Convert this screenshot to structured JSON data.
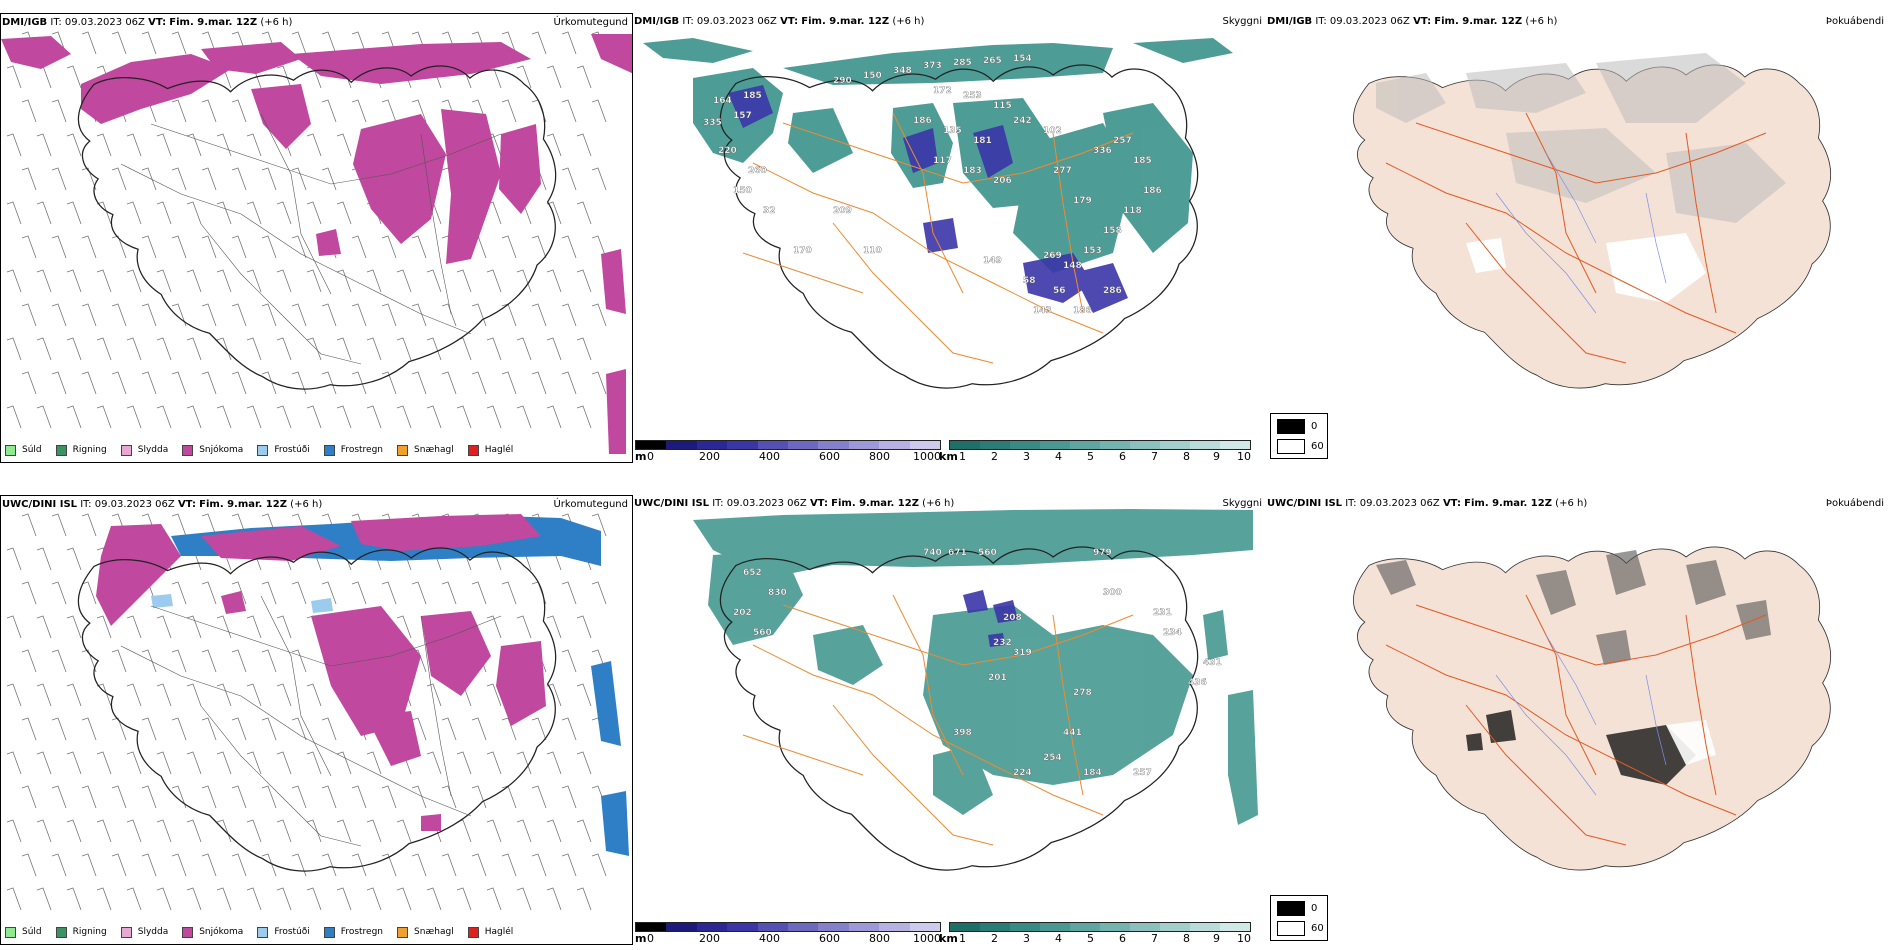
{
  "colors": {
    "snow": "#c0489e",
    "freezing": "#2f7fc6",
    "sleet": "#e9a8d4",
    "drizzle": "#8fea8f",
    "rain": "#3b9364",
    "frostudi": "#9ccbee",
    "snaehagl": "#f0a030",
    "hagl": "#e02020",
    "cloud": "#2f8c84",
    "lowcloud": "#3b36a8",
    "land": "#f5e2d6",
    "roads": "#e25a22",
    "roads_orange": "#ee8a30",
    "rivers": "#7a8fe8"
  },
  "header_common": {
    "it": "IT: 09.03.2023 06Z",
    "vt_label": "VT:",
    "vt_value": "Fim. 9.mar. 12Z",
    "lead": "(+6 h)"
  },
  "rows": [
    {
      "model": "DMI/IGB",
      "precip_title": "Úrkomutegund",
      "cloud_title": "Skyggni",
      "fog_title": "Þokuábendi",
      "cloud_labels": [
        "164",
        "185",
        "335",
        "157",
        "220",
        "260",
        "150",
        "32",
        "290",
        "150",
        "348",
        "373",
        "285",
        "265",
        "154",
        "172",
        "253",
        "115",
        "186",
        "135",
        "181",
        "117",
        "183",
        "206",
        "242",
        "102",
        "277",
        "179",
        "336",
        "257",
        "185",
        "186",
        "118",
        "158",
        "153",
        "148",
        "269",
        "149",
        "58",
        "56",
        "286",
        "186",
        "143",
        "110",
        "170",
        "209"
      ]
    },
    {
      "model": "UWC/DINI ISL",
      "precip_title": "Úrkomutegund",
      "cloud_title": "Skyggni",
      "fog_title": "Þokuábendi",
      "cloud_labels": [
        "652",
        "830",
        "202",
        "560",
        "740",
        "671",
        "560",
        "979",
        "300",
        "231",
        "234",
        "208",
        "232",
        "319",
        "201",
        "278",
        "431",
        "436",
        "398",
        "441",
        "254",
        "224",
        "184",
        "257"
      ]
    }
  ],
  "precip_legend": [
    {
      "label": "Súld",
      "color": "#8fea8f"
    },
    {
      "label": "Rigning",
      "color": "#3b9364"
    },
    {
      "label": "Slydda",
      "color": "#e9a8d4"
    },
    {
      "label": "Snjókoma",
      "color": "#c0489e"
    },
    {
      "label": "Frostúði",
      "color": "#9ccbee"
    },
    {
      "label": "Frostregn",
      "color": "#2f7fc6"
    },
    {
      "label": "Snæhagl",
      "color": "#f0a030"
    },
    {
      "label": "Haglél",
      "color": "#e02020"
    }
  ],
  "cloudbase_scale": {
    "unit": "m",
    "ticks": [
      "0",
      "200",
      "400",
      "600",
      "800",
      "1000"
    ],
    "colors": [
      "#000000",
      "#1c1a7a",
      "#2b2896",
      "#3b36a8",
      "#5550b4",
      "#6d68c0",
      "#8580cc",
      "#9d99d8",
      "#b5b2e3",
      "#cdcbed"
    ]
  },
  "visibility_scale": {
    "unit": "km",
    "ticks": [
      "1",
      "2",
      "3",
      "4",
      "5",
      "6",
      "7",
      "8",
      "9",
      "10"
    ],
    "colors": [
      "#1e6f68",
      "#2a7d76",
      "#378b84",
      "#4a9892",
      "#5fa5a0",
      "#75b3ae",
      "#8bc0bc",
      "#a2cecb",
      "#b9dbd9",
      "#d0e8e6"
    ]
  },
  "fog_key": [
    {
      "label": "0",
      "color": "#000000"
    },
    {
      "label": "60",
      "color": "#ffffff"
    }
  ]
}
